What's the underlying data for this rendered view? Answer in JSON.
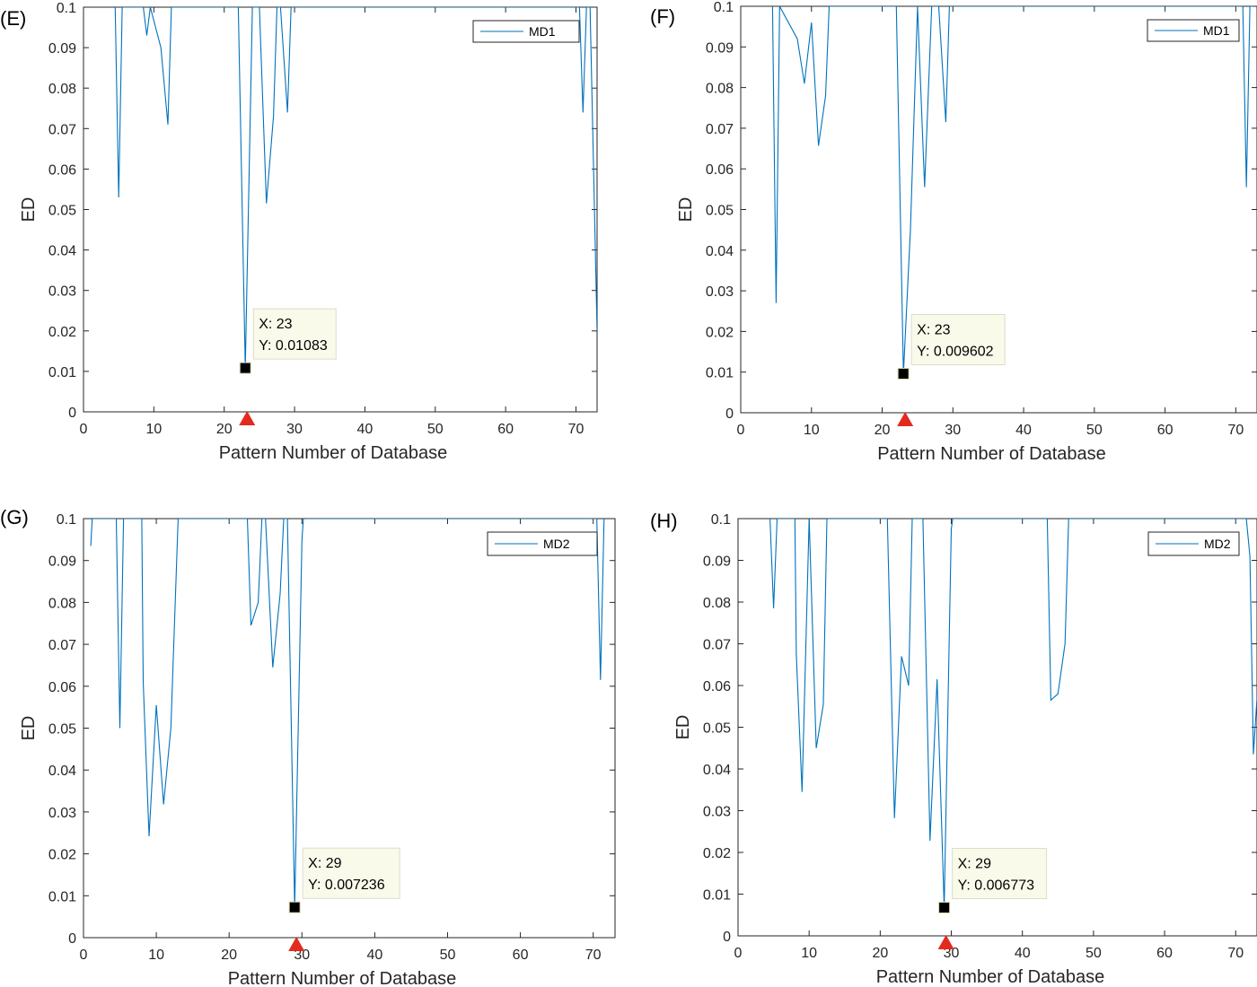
{
  "colors": {
    "series": "#0072BD",
    "marker": "#000000",
    "highlight_arrow": "#E32A1E",
    "datatip_bg": "#FAFAEB",
    "axes": "#262626"
  },
  "chart_data": [
    {
      "panel": "(E)",
      "type": "line",
      "xlabel": "Pattern Number of Database",
      "ylabel": "ED",
      "xlim": [
        0,
        73
      ],
      "ylim": [
        0,
        0.1
      ],
      "xticks": [
        0,
        10,
        20,
        30,
        40,
        50,
        60,
        70
      ],
      "yticks": [
        0,
        0.01,
        0.02,
        0.03,
        0.04,
        0.05,
        0.06,
        0.07,
        0.08,
        0.09,
        0.1
      ],
      "grid": false,
      "legend_position": "top-right",
      "series": [
        {
          "name": "MD1",
          "x": [
            4.5,
            5,
            5.5,
            8.5,
            9,
            9.5,
            11,
            12,
            12.5,
            22,
            23,
            24,
            24.5,
            25,
            26,
            27,
            27.5,
            28,
            29,
            29.5,
            70.5,
            71,
            71.5,
            72,
            72.5,
            73
          ],
          "y": [
            0.1,
            0.053,
            0.1,
            0.1,
            0.093,
            0.1,
            0.09,
            0.071,
            0.1,
            0.1,
            0.01083,
            0.1,
            0.1,
            0.1,
            0.0515,
            0.073,
            0.1,
            0.1,
            0.074,
            0.1,
            0.1,
            0.074,
            0.1,
            0.1,
            0.06,
            0.02
          ]
        }
      ],
      "datatip": {
        "x": 23,
        "y": 0.01083,
        "x_text": "X: 23",
        "y_text": "Y: 0.01083"
      },
      "highlight_x": 23
    },
    {
      "panel": "(F)",
      "type": "line",
      "xlabel": "Pattern Number of Database",
      "ylabel": "ED",
      "xlim": [
        0,
        73
      ],
      "ylim": [
        0,
        0.1
      ],
      "xticks": [
        0,
        10,
        20,
        30,
        40,
        50,
        60,
        70
      ],
      "yticks": [
        0,
        0.01,
        0.02,
        0.03,
        0.04,
        0.05,
        0.06,
        0.07,
        0.08,
        0.09,
        0.1
      ],
      "grid": false,
      "legend_position": "top-right",
      "series": [
        {
          "name": "MD1",
          "x": [
            4.5,
            5,
            5.5,
            8,
            9,
            10,
            11,
            12,
            12.5,
            22,
            23,
            24,
            25,
            26,
            27,
            27.5,
            28,
            29,
            29.5,
            71,
            71.5,
            72,
            72.5
          ],
          "y": [
            0.1,
            0.027,
            0.1,
            0.092,
            0.081,
            0.096,
            0.0657,
            0.078,
            0.1,
            0.1,
            0.009602,
            0.045,
            0.1,
            0.0555,
            0.1,
            0.1,
            0.1,
            0.0715,
            0.1,
            0.1,
            0.0555,
            0.1,
            0.1
          ]
        }
      ],
      "datatip": {
        "x": 23,
        "y": 0.009602,
        "x_text": "X: 23",
        "y_text": "Y: 0.009602"
      },
      "highlight_x": 23
    },
    {
      "panel": "(G)",
      "type": "line",
      "xlabel": "Pattern Number of Database",
      "ylabel": "ED",
      "xlim": [
        0,
        73
      ],
      "ylim": [
        0,
        0.1
      ],
      "xticks": [
        0,
        10,
        20,
        30,
        40,
        50,
        60,
        70
      ],
      "yticks": [
        0,
        0.01,
        0.02,
        0.03,
        0.04,
        0.05,
        0.06,
        0.07,
        0.08,
        0.09,
        0.1
      ],
      "grid": false,
      "legend_position": "top-right",
      "series": [
        {
          "name": "MD2",
          "x": [
            1,
            1.2,
            4.5,
            5,
            5.5,
            8,
            8.2,
            9,
            10,
            11,
            12,
            13,
            22.5,
            23,
            24,
            24.5,
            25,
            26,
            27,
            27.5,
            28,
            29,
            30,
            30.2,
            70.5,
            71,
            71.5
          ],
          "y": [
            0.0935,
            0.1,
            0.1,
            0.05,
            0.1,
            0.1,
            0.061,
            0.0242,
            0.0555,
            0.0318,
            0.05,
            0.1,
            0.1,
            0.0745,
            0.08,
            0.1,
            0.1,
            0.0645,
            0.082,
            0.1,
            0.1,
            0.007236,
            0.095,
            0.1,
            0.1,
            0.0615,
            0.1
          ]
        }
      ],
      "datatip": {
        "x": 29,
        "y": 0.007236,
        "x_text": "X: 29",
        "y_text": "Y: 0.007236"
      },
      "highlight_x": 29
    },
    {
      "panel": "(H)",
      "type": "line",
      "xlabel": "Pattern Number of Database",
      "ylabel": "ED",
      "xlim": [
        0,
        73
      ],
      "ylim": [
        0,
        0.1
      ],
      "xticks": [
        0,
        10,
        20,
        30,
        40,
        50,
        60,
        70
      ],
      "yticks": [
        0,
        0.01,
        0.02,
        0.03,
        0.04,
        0.05,
        0.06,
        0.07,
        0.08,
        0.09,
        0.1
      ],
      "grid": false,
      "legend_position": "top-right",
      "series": [
        {
          "name": "MD2",
          "x": [
            4.5,
            5,
            5.5,
            8,
            8.2,
            9,
            10,
            11,
            12,
            12.5,
            21,
            22,
            23,
            24,
            24.5,
            25,
            26,
            27,
            28,
            29,
            30,
            30.2,
            43.5,
            44,
            45,
            46,
            46.5,
            71.5,
            72,
            72.5,
            73
          ],
          "y": [
            0.1,
            0.0785,
            0.1,
            0.1,
            0.0675,
            0.0345,
            0.1,
            0.045,
            0.0555,
            0.1,
            0.1,
            0.0282,
            0.067,
            0.06,
            0.1,
            0.1,
            0.1,
            0.0228,
            0.0615,
            0.006773,
            0.0975,
            0.1,
            0.1,
            0.0565,
            0.058,
            0.07,
            0.1,
            0.1,
            0.091,
            0.0435,
            0.057
          ]
        }
      ],
      "datatip": {
        "x": 29,
        "y": 0.006773,
        "x_text": "X: 29",
        "y_text": "Y: 0.006773"
      },
      "highlight_x": 29
    }
  ]
}
